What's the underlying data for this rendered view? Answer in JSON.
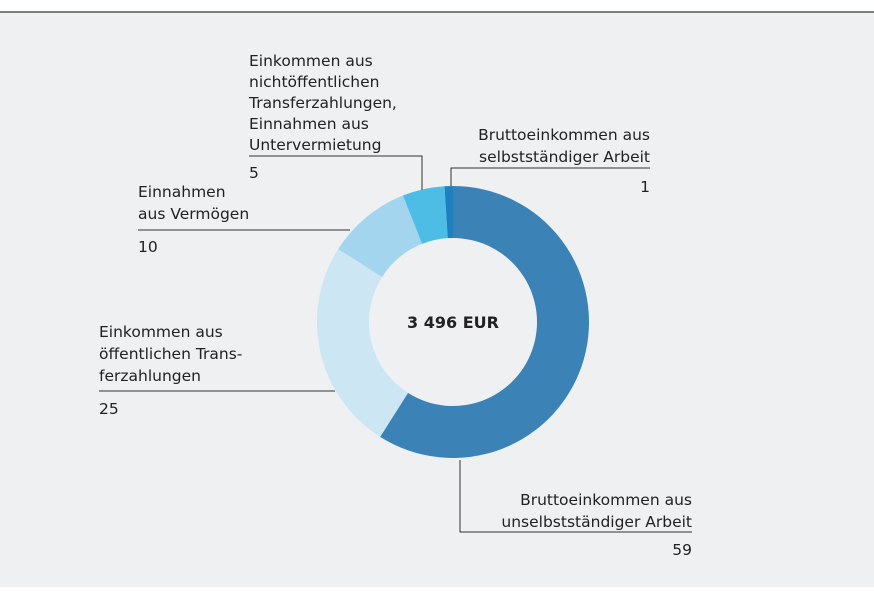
{
  "chart_data": {
    "type": "donut",
    "center_label": "3 496 EUR",
    "categories": [
      [
        "Bruttoeinkommen aus",
        "unselbstständiger Arbeit"
      ],
      [
        "Einkommen aus",
        "öffentlichen Trans-",
        "ferzahlungen"
      ],
      [
        "Einnahmen",
        "aus Vermögen"
      ],
      [
        "Einkommen aus",
        "nichtöffentlichen",
        "Transferzahlungen,",
        "Einnahmen aus",
        "Untervermietung"
      ],
      [
        "Bruttoeinkommen aus",
        "selbstständiger Arbeit"
      ]
    ],
    "values": [
      59,
      25,
      10,
      5,
      1
    ],
    "colors": [
      "#3b83b7",
      "#cce6f4",
      "#a3d5ef",
      "#4dbde6",
      "#1f7fc0"
    ]
  }
}
